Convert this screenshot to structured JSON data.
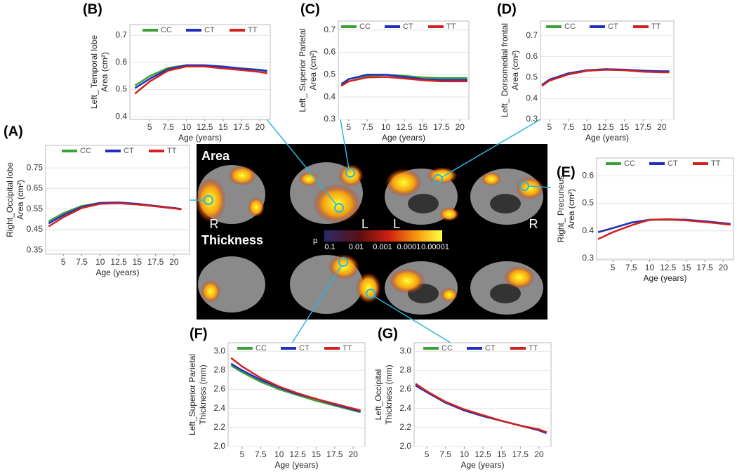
{
  "chart_data": [
    {
      "type": "line",
      "panel": "(A)",
      "ylabel": [
        "Right_Occipital lobe",
        "Area (cm²)"
      ],
      "xlabel": "Age (years)",
      "x": [
        3,
        5,
        7.5,
        10,
        12.5,
        15,
        17.5,
        20,
        21
      ],
      "xlim": [
        2.6,
        22.1
      ],
      "xticks": [
        5,
        7.5,
        10,
        12.5,
        15,
        17.5,
        20
      ],
      "ylim": [
        0.33,
        0.86
      ],
      "yticks": [
        0.35,
        0.45,
        0.55,
        0.65,
        0.75
      ],
      "grid": true,
      "legend": "top-right",
      "series": [
        {
          "name": "CC",
          "color": "#3aa335",
          "values": [
            0.49,
            0.53,
            0.565,
            0.58,
            0.58,
            0.575,
            0.565,
            0.555,
            0.55
          ]
        },
        {
          "name": "CT",
          "color": "#1f2fbf",
          "values": [
            0.48,
            0.52,
            0.56,
            0.58,
            0.582,
            0.575,
            0.565,
            0.555,
            0.55
          ]
        },
        {
          "name": "TT",
          "color": "#d42020",
          "values": [
            0.465,
            0.51,
            0.555,
            0.575,
            0.578,
            0.572,
            0.563,
            0.553,
            0.548
          ]
        }
      ]
    },
    {
      "type": "line",
      "panel": "(B)",
      "ylabel": [
        "Left_ Temporal lobe",
        "Area (cm²)"
      ],
      "xlabel": "Age (years)",
      "x": [
        3,
        5,
        7.5,
        10,
        12.5,
        15,
        17.5,
        20,
        21
      ],
      "xlim": [
        2.3,
        21.4
      ],
      "xticks": [
        5,
        7.5,
        10,
        12.5,
        15,
        17.5,
        20
      ],
      "ylim": [
        0.39,
        0.74
      ],
      "yticks": [
        0.4,
        0.5,
        0.6,
        0.7
      ],
      "grid": true,
      "legend": "top-right",
      "series": [
        {
          "name": "CC",
          "color": "#3aa335",
          "values": [
            0.515,
            0.55,
            0.58,
            0.59,
            0.588,
            0.583,
            0.578,
            0.573,
            0.57
          ]
        },
        {
          "name": "CT",
          "color": "#1f2fbf",
          "values": [
            0.505,
            0.54,
            0.575,
            0.59,
            0.59,
            0.585,
            0.578,
            0.572,
            0.568
          ]
        },
        {
          "name": "TT",
          "color": "#d42020",
          "values": [
            0.485,
            0.53,
            0.57,
            0.585,
            0.585,
            0.578,
            0.572,
            0.565,
            0.56
          ]
        }
      ]
    },
    {
      "type": "line",
      "panel": "(C)",
      "ylabel": [
        "Left_ Superior Parietal",
        "Area (cm²)"
      ],
      "xlabel": "Age (years)",
      "x": [
        4,
        5,
        7.5,
        10,
        12.5,
        15,
        17.5,
        20,
        21
      ],
      "xlim": [
        3.6,
        21.2
      ],
      "xticks": [
        5,
        7.5,
        10,
        12.5,
        15,
        17.5,
        20
      ],
      "ylim": [
        0.3,
        0.74
      ],
      "yticks": [
        0.3,
        0.4,
        0.5,
        0.6,
        0.7
      ],
      "grid": true,
      "legend": "top-right",
      "series": [
        {
          "name": "CC",
          "color": "#3aa335",
          "values": [
            0.46,
            0.48,
            0.495,
            0.5,
            0.495,
            0.488,
            0.485,
            0.485,
            0.485
          ]
        },
        {
          "name": "CT",
          "color": "#1f2fbf",
          "values": [
            0.455,
            0.48,
            0.5,
            0.5,
            0.49,
            0.48,
            0.477,
            0.477,
            0.477
          ]
        },
        {
          "name": "TT",
          "color": "#d42020",
          "values": [
            0.45,
            0.47,
            0.488,
            0.49,
            0.483,
            0.475,
            0.47,
            0.47,
            0.47
          ]
        }
      ]
    },
    {
      "type": "line",
      "panel": "(D)",
      "ylabel": [
        "Left_ Dorsomedial frontal",
        "Area (cm²)"
      ],
      "xlabel": "Age (years)",
      "x": [
        4,
        5,
        7.5,
        10,
        12.5,
        15,
        17.5,
        20,
        21
      ],
      "xlim": [
        3.8,
        21.6
      ],
      "xticks": [
        5,
        7.5,
        10,
        12.5,
        15,
        17.5,
        20
      ],
      "ylim": [
        0.3,
        0.77
      ],
      "yticks": [
        0.3,
        0.4,
        0.5,
        0.6,
        0.7
      ],
      "grid": true,
      "legend": "top-right",
      "series": [
        {
          "name": "CC",
          "color": "#3aa335",
          "values": [
            0.465,
            0.49,
            0.52,
            0.535,
            0.54,
            0.535,
            0.53,
            0.53,
            0.53
          ]
        },
        {
          "name": "CT",
          "color": "#1f2fbf",
          "values": [
            0.465,
            0.49,
            0.52,
            0.535,
            0.54,
            0.538,
            0.533,
            0.53,
            0.53
          ]
        },
        {
          "name": "TT",
          "color": "#d42020",
          "values": [
            0.46,
            0.485,
            0.515,
            0.532,
            0.537,
            0.535,
            0.528,
            0.525,
            0.525
          ]
        }
      ]
    },
    {
      "type": "line",
      "panel": "(E)",
      "ylabel": [
        "Right_ Precuneus",
        "Area (cm²)"
      ],
      "xlabel": "Age (years)",
      "x": [
        3,
        5,
        7.5,
        10,
        12.5,
        15,
        17.5,
        20,
        21
      ],
      "xlim": [
        2.8,
        21.4
      ],
      "xticks": [
        5,
        7.5,
        10,
        12.5,
        15,
        17.5,
        20
      ],
      "ylim": [
        0.295,
        0.664
      ],
      "yticks": [
        0.3,
        0.4,
        0.5,
        0.6
      ],
      "grid": true,
      "legend": "top-right",
      "series": [
        {
          "name": "CC",
          "color": "#3aa335",
          "values": [
            0.395,
            0.41,
            0.43,
            0.44,
            0.44,
            0.438,
            0.432,
            0.428,
            0.425
          ]
        },
        {
          "name": "CT",
          "color": "#1f2fbf",
          "values": [
            0.395,
            0.41,
            0.43,
            0.44,
            0.442,
            0.44,
            0.435,
            0.428,
            0.425
          ]
        },
        {
          "name": "TT",
          "color": "#d42020",
          "values": [
            0.37,
            0.395,
            0.42,
            0.44,
            0.442,
            0.438,
            0.432,
            0.425,
            0.422
          ]
        }
      ]
    },
    {
      "type": "line",
      "panel": "(F)",
      "ylabel": [
        "Left_Superior Parietal",
        "Thickness (mm)"
      ],
      "xlabel": "Age (years)",
      "x": [
        3.5,
        5,
        7.5,
        10,
        12.5,
        15,
        17.5,
        20,
        21
      ],
      "xlim": [
        3.1,
        21.6
      ],
      "xticks": [
        5,
        7.5,
        10,
        12.5,
        15,
        17.5,
        20
      ],
      "ylim": [
        2.0,
        3.09
      ],
      "yticks": [
        {
          "value": 2.0,
          "label": "2.0"
        },
        2.2,
        2.4,
        2.6,
        2.8,
        {
          "value": 3.0,
          "label": "3.0"
        }
      ],
      "grid": true,
      "legend": "top-right",
      "series": [
        {
          "name": "CC",
          "color": "#3aa335",
          "values": [
            2.85,
            2.78,
            2.68,
            2.6,
            2.54,
            2.48,
            2.43,
            2.38,
            2.36
          ]
        },
        {
          "name": "CT",
          "color": "#1f2fbf",
          "values": [
            2.87,
            2.8,
            2.7,
            2.62,
            2.55,
            2.5,
            2.44,
            2.39,
            2.37
          ]
        },
        {
          "name": "TT",
          "color": "#d42020",
          "values": [
            2.93,
            2.84,
            2.72,
            2.63,
            2.56,
            2.5,
            2.45,
            2.4,
            2.38
          ]
        }
      ]
    },
    {
      "type": "line",
      "panel": "(G)",
      "ylabel": [
        "Left_Occipital",
        "Thickness (mm)"
      ],
      "xlabel": "Age (years)",
      "x": [
        3.5,
        5,
        7.5,
        10,
        12.5,
        15,
        17.5,
        20,
        21
      ],
      "xlim": [
        3.3,
        21.6
      ],
      "xticks": [
        5,
        7.5,
        10,
        12.5,
        15,
        17.5,
        20
      ],
      "ylim": [
        2.0,
        3.09
      ],
      "yticks": [
        {
          "value": 2.0,
          "label": "2.0"
        },
        2.2,
        2.4,
        2.6,
        2.8,
        {
          "value": 3.0,
          "label": "3.0"
        }
      ],
      "grid": true,
      "legend": "top-right",
      "series": [
        {
          "name": "CC",
          "color": "#3aa335",
          "values": [
            2.65,
            2.57,
            2.46,
            2.38,
            2.32,
            2.27,
            2.22,
            2.18,
            2.15
          ]
        },
        {
          "name": "CT",
          "color": "#1f2fbf",
          "values": [
            2.64,
            2.57,
            2.46,
            2.38,
            2.32,
            2.27,
            2.22,
            2.17,
            2.14
          ]
        },
        {
          "name": "TT",
          "color": "#d42020",
          "values": [
            2.66,
            2.58,
            2.47,
            2.39,
            2.33,
            2.27,
            2.22,
            2.18,
            2.15
          ]
        }
      ]
    }
  ],
  "brain_map": {
    "area_label": "Area",
    "thickness_label": "Thickness",
    "hemispheres": [
      "R",
      "L",
      "L",
      "R"
    ],
    "colorbar": {
      "label": "p",
      "ticks": [
        {
          "value": 0.1,
          "label": "0.1"
        },
        {
          "value": 0.01,
          "label": "0.01"
        },
        {
          "value": 0.001,
          "label": "0.001"
        },
        {
          "value": 0.0001,
          "label": "0.0001"
        },
        {
          "value": 1e-05,
          "label": "0.00001"
        }
      ]
    }
  }
}
